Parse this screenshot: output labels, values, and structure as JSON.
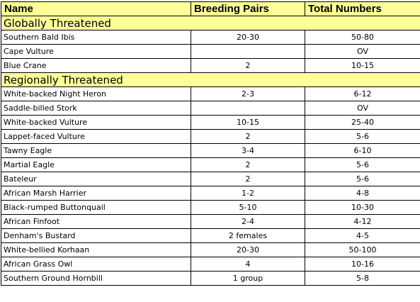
{
  "headers": {
    "name": "Name",
    "breeding_pairs": "Breeding Pairs",
    "total_numbers": "Total Numbers"
  },
  "sections": [
    {
      "title": "Globally Threatened",
      "rows": [
        {
          "name": "Southern Bald Ibis",
          "pairs": "20-30",
          "total": "50-80"
        },
        {
          "name": " Cape Vulture",
          "pairs": "",
          "total": "OV"
        },
        {
          "name": "Blue Crane",
          "pairs": "2",
          "total": "10-15"
        }
      ]
    },
    {
      "title": "Regionally Threatened",
      "rows": [
        {
          "name": "White-backed Night Heron",
          "pairs": "2-3",
          "total": "6-12"
        },
        {
          "name": "Saddle-billed Stork",
          "pairs": "",
          "total": "OV"
        },
        {
          "name": "White-backed Vulture",
          "pairs": "10-15",
          "total": "25-40"
        },
        {
          "name": "Lappet-faced Vulture",
          "pairs": "2",
          "total": "5-6"
        },
        {
          "name": "Tawny Eagle",
          "pairs": "3-4",
          "total": "6-10"
        },
        {
          "name": "Martial Eagle",
          "pairs": "2",
          "total": "5-6"
        },
        {
          "name": "Bateleur",
          "pairs": "2",
          "total": "5-6"
        },
        {
          "name": "African Marsh Harrier",
          "pairs": "1-2",
          "total": "4-8"
        },
        {
          "name": "Black-rumped Buttonquail",
          "pairs": "5-10",
          "total": "10-30"
        },
        {
          "name": "African Finfoot",
          "pairs": "2-4",
          "total": "4-12"
        },
        {
          "name": "Denham's Bustard",
          "pairs": "2 females",
          "total": "4-5"
        },
        {
          "name": "White-bellied Korhaan",
          "pairs": "20-30",
          "total": "50-100"
        },
        {
          "name": "African Grass Owl",
          "pairs": "4",
          "total": "10-16"
        },
        {
          "name": "Southern Ground Hornbill",
          "pairs": "1 group",
          "total": "5-8"
        }
      ]
    }
  ],
  "colors": {
    "header_fill": "#ffff99",
    "border": "#000000",
    "text": "#000000"
  }
}
